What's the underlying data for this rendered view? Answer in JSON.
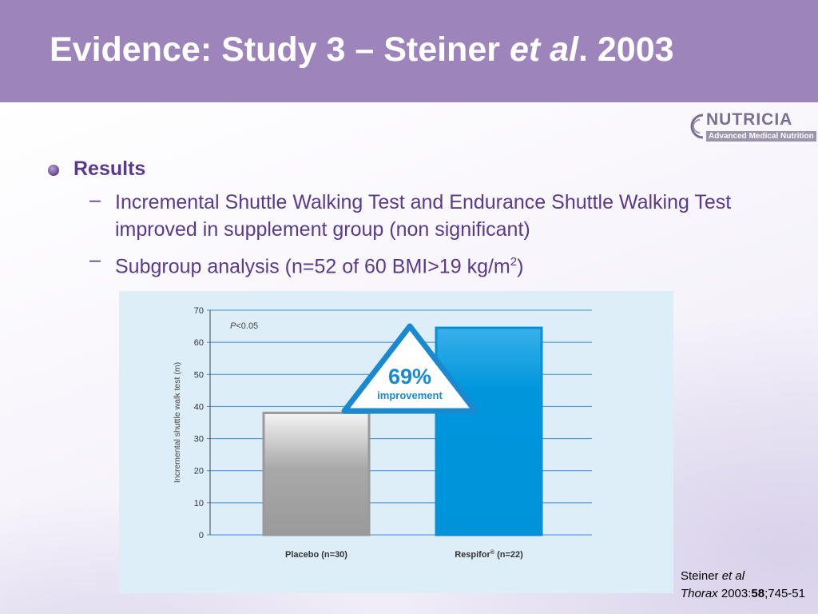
{
  "slide": {
    "title_main": "Evidence: Study 3 – Steiner ",
    "title_italic": "et al",
    "title_end": ". 2003"
  },
  "logo": {
    "name": "NUTRICIA",
    "tagline": "Advanced Medical Nutrition"
  },
  "bullets": {
    "heading": "Results",
    "dash": "–",
    "item1": "Incremental Shuttle Walking Test and Endurance Shuttle Walking Test improved in supplement group (non significant)",
    "item2_main": "Subgroup analysis (n=52 of 60 BMI>19 kg/m",
    "item2_sup": "2",
    "item2_end": ")"
  },
  "chart_data": {
    "type": "bar",
    "categories": [
      "Placebo (n=30)",
      "Respifor® (n=22)"
    ],
    "values": [
      38,
      64.5
    ],
    "ylabel": "Incremental shuttle walk test (m)",
    "ylim": [
      0,
      70
    ],
    "yticks": [
      0,
      10,
      20,
      30,
      40,
      50,
      60,
      70
    ],
    "grid": true,
    "annotation_p": "P<0.05",
    "callout_value": "69%",
    "callout_label": "improvement",
    "colors": {
      "placebo": "#9a9a9a",
      "respifor": "#0096dc",
      "grid": "#3c8fd2",
      "callout": "#1a8ad0"
    }
  },
  "citation": {
    "author": "Steiner ",
    "etal": "et al",
    "journal": "Thorax",
    "year": " 2003:",
    "volume": "58",
    "pages": ";745-51"
  }
}
